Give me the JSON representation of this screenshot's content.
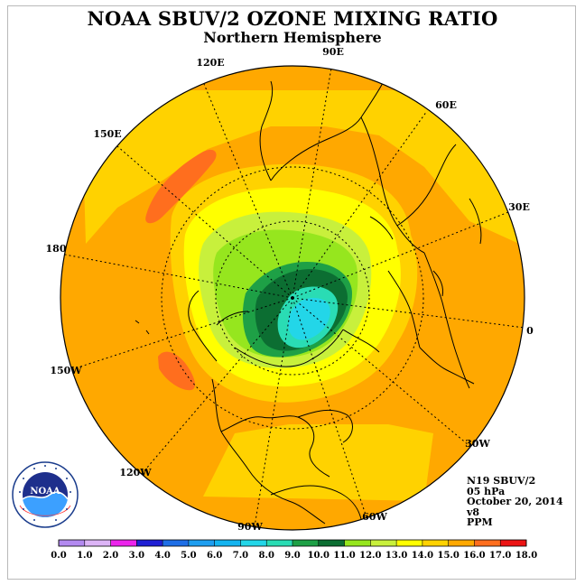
{
  "title": "NOAA SBUV/2 OZONE MIXING RATIO",
  "subtitle": "Northern Hemisphere",
  "longitude_labels": {
    "lon_90e": "90E",
    "lon_60e": "60E",
    "lon_30e": "30E",
    "lon_0": "0",
    "lon_30w": "30W",
    "lon_60w": "60W",
    "lon_90w": "90W",
    "lon_120w": "120W",
    "lon_150w": "150W",
    "lon_180": "180",
    "lon_150e": "150E",
    "lon_120e": "120E"
  },
  "info": {
    "instrument": "N19 SBUV/2",
    "level": "05 hPa",
    "date": "October 20, 2014",
    "version": "v8",
    "units": "PPM"
  },
  "colorbar": {
    "ticks": [
      "0.0",
      "1.0",
      "2.0",
      "3.0",
      "4.0",
      "5.0",
      "6.0",
      "7.0",
      "8.0",
      "9.0",
      "10.0",
      "11.0",
      "12.0",
      "13.0",
      "14.0",
      "15.0",
      "16.0",
      "17.0",
      "18.0"
    ],
    "colors": [
      "#b38af0",
      "#dcb4f6",
      "#ec24ec",
      "#1f1fd4",
      "#1e6ee6",
      "#1e9ef0",
      "#14b4f0",
      "#23d6e8",
      "#2adcb4",
      "#1ea046",
      "#0c6e32",
      "#96e61e",
      "#c8f03c",
      "#ffff00",
      "#ffd200",
      "#ffa800",
      "#ff6e1e",
      "#ec1414",
      "#8c5a3c"
    ]
  },
  "logo": {
    "text": "NOAA",
    "ring_text": "NATIONAL OCEANIC AND ATMOSPHERIC ADMINISTRATION · U.S. DEPARTMENT OF COMMERCE"
  }
}
